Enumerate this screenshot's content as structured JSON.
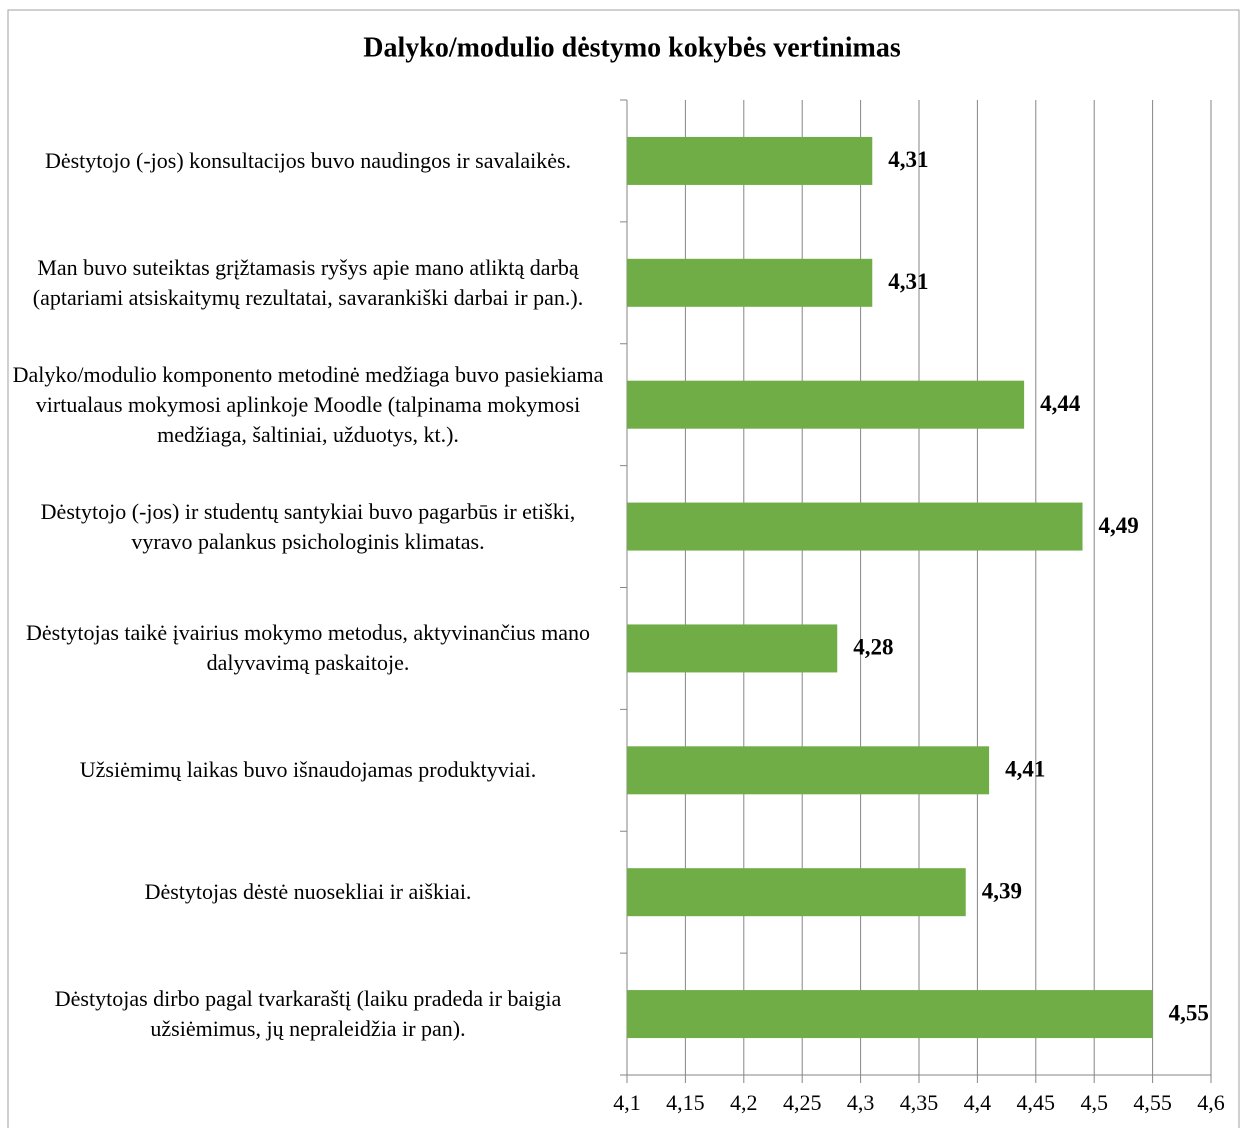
{
  "chart_data": {
    "type": "bar",
    "orientation": "horizontal",
    "title": "Dalyko/modulio dėstymo kokybės vertinimas",
    "categories": [
      "Dėstytojo (-jos) konsultacijos buvo naudingos ir savalaikės.",
      "Man buvo suteiktas grįžtamasis ryšys apie mano atliktą darbą (aptariami atsiskaitymų rezultatai, savarankiški darbai ir pan.).",
      "Dalyko/modulio komponento metodinė medžiaga buvo pasiekiama virtualaus mokymosi aplinkoje Moodle (talpinama mokymosi medžiaga, šaltiniai, užduotys, kt.).",
      "Dėstytojo (-jos) ir studentų santykiai buvo pagarbūs ir etiški, vyravo palankus psichologinis klimatas.",
      "Dėstytojas taikė įvairius mokymo metodus, aktyvinančius mano dalyvavimą paskaitoje.",
      "Užsiėmimų laikas buvo išnaudojamas produktyviai.",
      "Dėstytojas dėstė nuosekliai ir aiškiai.",
      "Dėstytojas dirbo pagal tvarkaraštį (laiku pradeda ir baigia užsiėmimus, jų nepraleidžia ir pan)."
    ],
    "values": [
      4.31,
      4.31,
      4.44,
      4.49,
      4.28,
      4.41,
      4.39,
      4.55
    ],
    "value_labels": [
      "4,31",
      "4,31",
      "4,44",
      "4,49",
      "4,28",
      "4,41",
      "4,39",
      "4,55"
    ],
    "color": "#70ad47",
    "xlim": [
      4.1,
      4.6
    ],
    "xticks": [
      {
        "value": 4.1,
        "label": "4,1"
      },
      {
        "value": 4.15,
        "label": "4,15"
      },
      {
        "value": 4.2,
        "label": "4,2"
      },
      {
        "value": 4.25,
        "label": "4,25"
      },
      {
        "value": 4.3,
        "label": "4,3"
      },
      {
        "value": 4.35,
        "label": "4,35"
      },
      {
        "value": 4.4,
        "label": "4,4"
      },
      {
        "value": 4.45,
        "label": "4,45"
      },
      {
        "value": 4.5,
        "label": "4,5"
      },
      {
        "value": 4.55,
        "label": "4,55"
      },
      {
        "value": 4.6,
        "label": "4,6"
      }
    ],
    "grid": true
  }
}
